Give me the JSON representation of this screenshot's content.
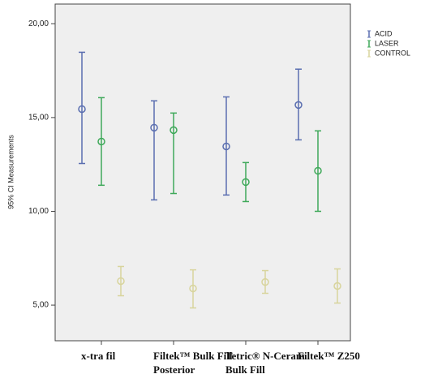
{
  "chart_data": {
    "type": "errorbar",
    "ylabel": "95% CI Measurements",
    "categories": [
      "x-tra fil",
      "Filtek™ Bulk Fill Posterior",
      "Tetric® N-Ceram Bulk Fill",
      "Filtek™ Z250"
    ],
    "series": [
      {
        "name": "ACID",
        "color": "#5a6eb0",
        "values": [
          15.45,
          14.46,
          13.46,
          15.67
        ],
        "lower": [
          12.55,
          10.61,
          10.87,
          13.81
        ],
        "upper": [
          18.48,
          15.89,
          16.1,
          17.58
        ]
      },
      {
        "name": "LASER",
        "color": "#3fa95a",
        "values": [
          13.72,
          14.33,
          11.56,
          12.16
        ],
        "lower": [
          11.39,
          10.95,
          10.52,
          10.0
        ],
        "upper": [
          16.06,
          15.24,
          12.6,
          14.29
        ]
      },
      {
        "name": "CONTROL",
        "color": "#d8d49c",
        "values": [
          6.28,
          5.89,
          6.23,
          6.02
        ],
        "lower": [
          5.5,
          4.85,
          5.63,
          5.11
        ],
        "upper": [
          7.06,
          6.88,
          6.84,
          6.93
        ]
      }
    ],
    "ylim": [
      3.1,
      21.05
    ],
    "yticks": [
      {
        "value": 5,
        "label": "5,00"
      },
      {
        "value": 10,
        "label": "10,00"
      },
      {
        "value": 15,
        "label": "15,00"
      },
      {
        "value": 20,
        "label": "20,00"
      }
    ]
  }
}
